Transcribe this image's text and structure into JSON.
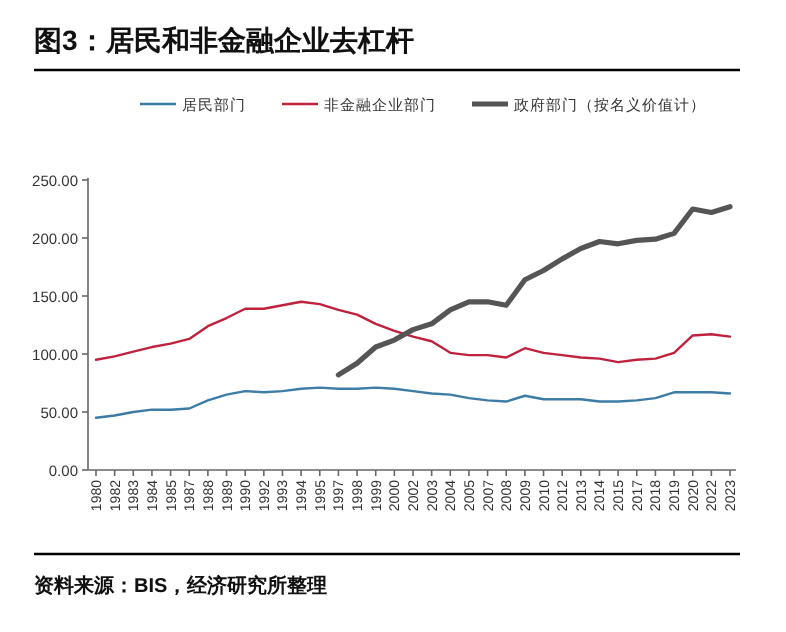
{
  "chart_data": {
    "type": "line",
    "title": "图3：居民和非金融企业去杠杆",
    "categories": [
      "1980",
      "1982",
      "1983",
      "1984",
      "1985",
      "1987",
      "1988",
      "1989",
      "1990",
      "1992",
      "1993",
      "1994",
      "1995",
      "1997",
      "1998",
      "1999",
      "2000",
      "2002",
      "2003",
      "2004",
      "2005",
      "2007",
      "2008",
      "2009",
      "2010",
      "2012",
      "2013",
      "2014",
      "2015",
      "2017",
      "2018",
      "2019",
      "2020",
      "2022",
      "2023"
    ],
    "series": [
      {
        "name": "居民部门",
        "color": "#3d7ca6",
        "values": [
          45,
          47,
          50,
          52,
          52,
          53,
          60,
          65,
          68,
          67,
          68,
          70,
          71,
          70,
          70,
          71,
          70,
          68,
          66,
          65,
          62,
          60,
          59,
          64,
          61,
          61,
          61,
          59,
          59,
          60,
          62,
          67,
          67,
          67,
          66
        ]
      },
      {
        "name": "非金融企业部门",
        "color": "#c0223e",
        "values": [
          95,
          98,
          102,
          106,
          109,
          113,
          124,
          131,
          139,
          139,
          142,
          145,
          143,
          138,
          134,
          126,
          120,
          115,
          111,
          101,
          99,
          99,
          97,
          105,
          101,
          99,
          97,
          96,
          93,
          95,
          96,
          101,
          116,
          117,
          115
        ]
      },
      {
        "name": "政府部门（按名义价值计）",
        "color": "#555555",
        "values": [
          null,
          null,
          null,
          null,
          null,
          null,
          null,
          null,
          null,
          null,
          null,
          null,
          null,
          82,
          92,
          106,
          112,
          121,
          126,
          138,
          145,
          145,
          142,
          164,
          172,
          182,
          191,
          197,
          195,
          198,
          199,
          204,
          225,
          222,
          227
        ]
      }
    ],
    "ylim": [
      0,
      250
    ],
    "yticks": [
      {
        "value": 0,
        "label": "0.00"
      },
      {
        "value": 50,
        "label": "50.00"
      },
      {
        "value": 100,
        "label": "100.00"
      },
      {
        "value": 150,
        "label": "150.00"
      },
      {
        "value": 200,
        "label": "200.00"
      },
      {
        "value": 250,
        "label": "250.00"
      }
    ],
    "legend": "top",
    "grid": false,
    "annotations": [
      "资料来源：BIS，经济研究所整理"
    ]
  }
}
